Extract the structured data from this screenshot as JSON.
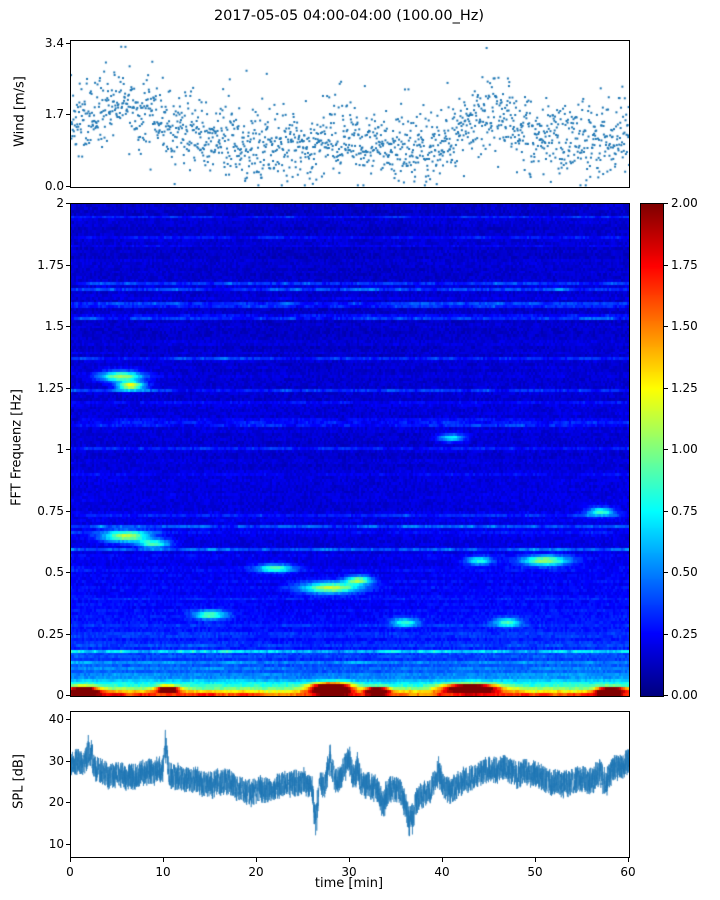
{
  "figure": {
    "title": "2017-05-05 04:00-04:00 (100.00_Hz)",
    "background": "#ffffff"
  },
  "chart_data": [
    {
      "type": "scatter",
      "name": "wind-speed",
      "ylabel": "Wind [m/s]",
      "xlim": [
        0,
        60
      ],
      "ylim": [
        0,
        3.47
      ],
      "yticks": [
        0.0,
        1.7,
        3.4
      ],
      "ytick_labels": [
        "0.0",
        "1.7",
        "3.4"
      ],
      "marker_color": "#1f77b4",
      "n_points": 1600,
      "seed": 7,
      "baseline_every_5min": [
        1.5,
        2.0,
        1.5,
        1.2,
        0.9,
        1.0,
        1.2,
        0.9,
        0.9,
        1.9,
        1.2,
        1.1,
        1.2
      ],
      "noise_sd": 0.42,
      "outlier_prob": 0.012,
      "outlier_amp": 1.3
    },
    {
      "type": "heatmap",
      "name": "fft-spectrogram",
      "ylabel": "FFT Frequenz [Hz]",
      "xlim": [
        0,
        60
      ],
      "ylim": [
        0,
        2
      ],
      "yticks": [
        0,
        0.25,
        0.5,
        0.75,
        1,
        1.25,
        1.5,
        1.75,
        2
      ],
      "ytick_labels": [
        "0",
        "0.25",
        "0.5",
        "0.75",
        "1",
        "1.25",
        "1.5",
        "1.75",
        "2"
      ],
      "colormap": "jet",
      "clim": [
        0,
        2
      ],
      "colorbar_ticks": [
        "0.00",
        "0.25",
        "0.50",
        "0.75",
        "1.00",
        "1.25",
        "1.50",
        "1.75",
        "2.00"
      ],
      "grid": {
        "cols": 280,
        "rows": 170
      },
      "seed": 4242,
      "base_level": 0.09,
      "low_freq_boost": {
        "amp": 0.3,
        "scale": 0.35
      },
      "streaks": {
        "amp": 0.6,
        "density": 0.3
      },
      "speckle": 0.1,
      "bottom_band": {
        "amp": 1.9,
        "scale": 0.035
      },
      "dark_band": {
        "t_center": 28,
        "strength": 0.15,
        "sigma2": 128
      },
      "hotspots": [
        {
          "t": 5.5,
          "f": 1.3,
          "dt": 1.6,
          "df": 0.015,
          "v": 0.9
        },
        {
          "t": 6.5,
          "f": 1.26,
          "dt": 1.0,
          "df": 0.012,
          "v": 1.1
        },
        {
          "t": 6.0,
          "f": 0.65,
          "dt": 1.8,
          "df": 0.016,
          "v": 0.9
        },
        {
          "t": 9.0,
          "f": 0.62,
          "dt": 1.2,
          "df": 0.012,
          "v": 0.7
        },
        {
          "t": 15.0,
          "f": 0.33,
          "dt": 1.2,
          "df": 0.012,
          "v": 0.7
        },
        {
          "t": 22.0,
          "f": 0.52,
          "dt": 1.4,
          "df": 0.012,
          "v": 0.7
        },
        {
          "t": 28.0,
          "f": 0.44,
          "dt": 2.2,
          "df": 0.016,
          "v": 0.9
        },
        {
          "t": 31.0,
          "f": 0.47,
          "dt": 1.0,
          "df": 0.012,
          "v": 0.8
        },
        {
          "t": 36.0,
          "f": 0.3,
          "dt": 1.0,
          "df": 0.012,
          "v": 0.6
        },
        {
          "t": 41.0,
          "f": 1.05,
          "dt": 1.0,
          "df": 0.012,
          "v": 0.6
        },
        {
          "t": 44.0,
          "f": 0.55,
          "dt": 1.0,
          "df": 0.012,
          "v": 0.6
        },
        {
          "t": 47.0,
          "f": 0.3,
          "dt": 1.0,
          "df": 0.012,
          "v": 0.6
        },
        {
          "t": 51.0,
          "f": 0.55,
          "dt": 1.8,
          "df": 0.014,
          "v": 0.85
        },
        {
          "t": 57.0,
          "f": 0.75,
          "dt": 1.0,
          "df": 0.012,
          "v": 0.7
        },
        {
          "t": 1.5,
          "f": 0.02,
          "dt": 1.0,
          "df": 0.012,
          "v": 1.8
        },
        {
          "t": 10.5,
          "f": 0.025,
          "dt": 0.8,
          "df": 0.01,
          "v": 1.6
        },
        {
          "t": 28.0,
          "f": 0.03,
          "dt": 1.5,
          "df": 0.016,
          "v": 2.2
        },
        {
          "t": 33.0,
          "f": 0.02,
          "dt": 0.8,
          "df": 0.01,
          "v": 1.7
        },
        {
          "t": 43.0,
          "f": 0.03,
          "dt": 2.0,
          "df": 0.012,
          "v": 1.9
        },
        {
          "t": 58.0,
          "f": 0.02,
          "dt": 1.0,
          "df": 0.01,
          "v": 1.8
        }
      ]
    },
    {
      "type": "line",
      "name": "spl",
      "ylabel": "SPL [dB]",
      "xlabel": "time [min]",
      "xlim": [
        0,
        60
      ],
      "ylim": [
        7,
        42
      ],
      "yticks": [
        10,
        20,
        30,
        40
      ],
      "ytick_labels": [
        "10",
        "20",
        "30",
        "40"
      ],
      "xticks": [
        0,
        10,
        20,
        30,
        40,
        50,
        60
      ],
      "xtick_labels": [
        "0",
        "10",
        "20",
        "30",
        "40",
        "50",
        "60"
      ],
      "line_color": "#1f77b4",
      "n_points": 5000,
      "seed": 99,
      "baseline_every_5min": [
        30,
        27,
        27,
        25,
        24,
        24,
        26,
        21.5,
        22,
        28,
        26,
        25,
        30
      ],
      "noise_halfwidth": 3.2,
      "events": [
        {
          "t": 2.0,
          "dv": 5,
          "sigma": 0.3
        },
        {
          "t": 10.2,
          "dv": 9,
          "sigma": 0.15
        },
        {
          "t": 26.3,
          "dv": -10,
          "sigma": 0.2
        },
        {
          "t": 27.8,
          "dv": 7,
          "sigma": 0.3
        },
        {
          "t": 29.8,
          "dv": 6,
          "sigma": 0.3
        },
        {
          "t": 30.8,
          "dv": 5,
          "sigma": 0.2
        },
        {
          "t": 33.5,
          "dv": -6,
          "sigma": 0.3
        },
        {
          "t": 36.5,
          "dv": -7,
          "sigma": 0.4
        },
        {
          "t": 39.5,
          "dv": 5,
          "sigma": 0.3
        },
        {
          "t": 57.5,
          "dv": -4,
          "sigma": 0.3
        }
      ]
    }
  ]
}
